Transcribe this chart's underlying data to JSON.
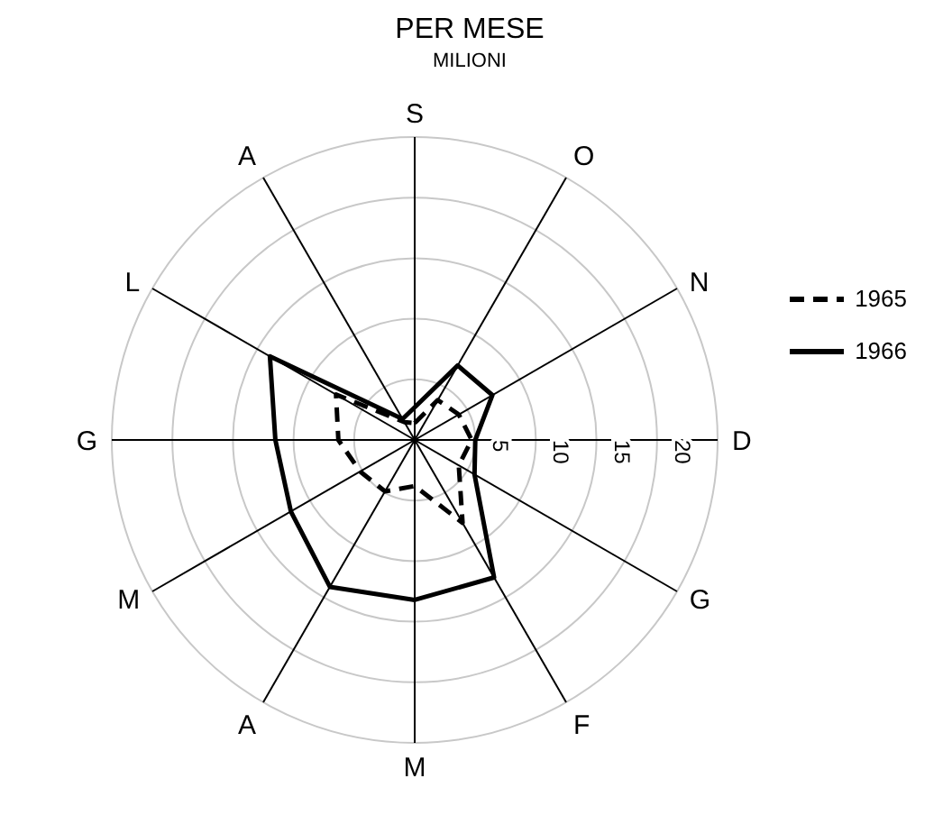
{
  "chart_data": {
    "type": "radar",
    "title": "PER MESE",
    "subtitle": "MILIONI",
    "categories": [
      "S",
      "O",
      "N",
      "D",
      "G",
      "F",
      "M",
      "A",
      "M",
      "G",
      "L",
      "A"
    ],
    "series": [
      {
        "name": "1965",
        "color": "#000000",
        "line_style": "dashed",
        "values": [
          1.4,
          3.8,
          4.2,
          4.7,
          4.2,
          7.9,
          3.8,
          4.9,
          5.2,
          6.3,
          7.5,
          1.7
        ]
      },
      {
        "name": "1966",
        "color": "#000000",
        "line_style": "solid",
        "values": [
          2.7,
          7.1,
          7.4,
          5,
          5.7,
          13.1,
          13.2,
          14,
          11.8,
          11.5,
          13.8,
          2
        ]
      }
    ],
    "ylim": [
      0,
      25
    ],
    "yticks": [
      5,
      10,
      15,
      20
    ],
    "grid": true,
    "legend": "right",
    "marker": "none"
  }
}
